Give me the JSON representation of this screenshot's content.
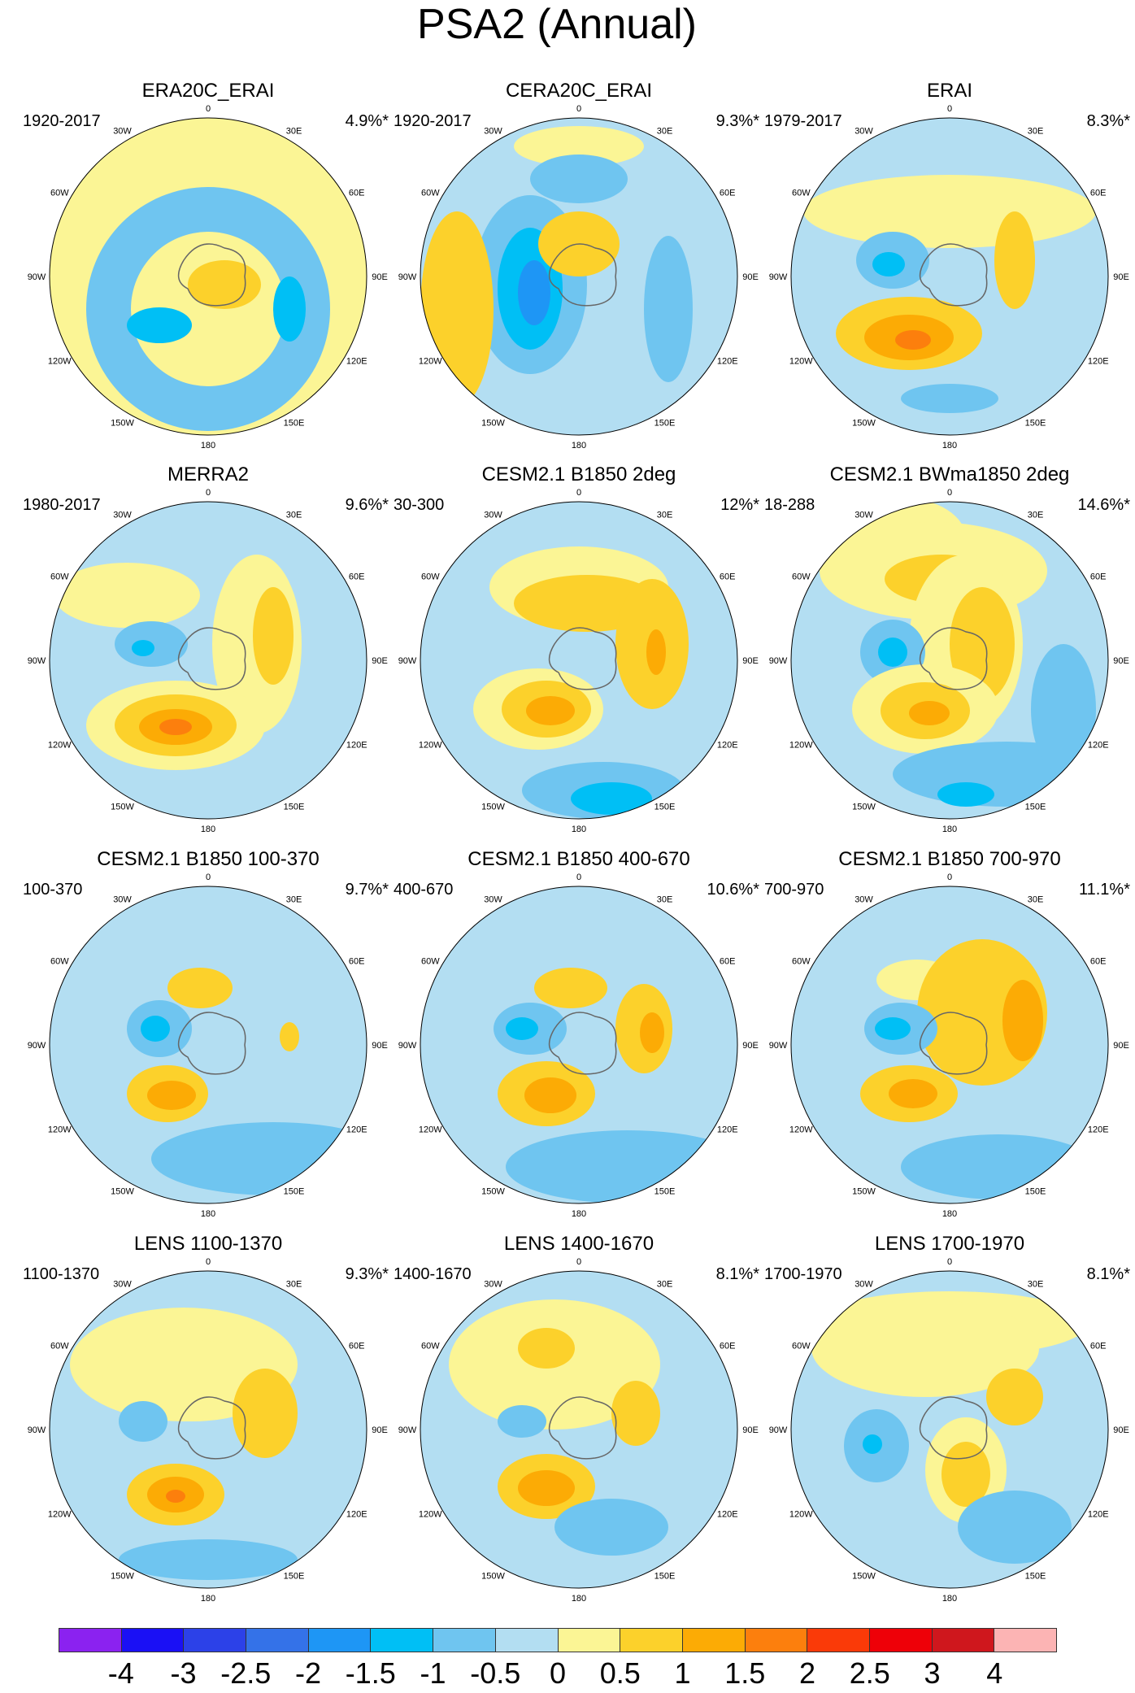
{
  "figure": {
    "title": "PSA2 (Annual)",
    "lon_labels": [
      "0",
      "30E",
      "60E",
      "90E",
      "120E",
      "150E",
      "180",
      "150W",
      "120W",
      "90W",
      "60W",
      "30W"
    ]
  },
  "panels": [
    {
      "title": "ERA20C_ERAI",
      "range": "1920-2017",
      "pct": "4.9%*"
    },
    {
      "title": "CERA20C_ERAI",
      "range": "1920-2017",
      "pct": "9.3%*"
    },
    {
      "title": "ERAI",
      "range": "1979-2017",
      "pct": "8.3%*"
    },
    {
      "title": "MERRA2",
      "range": "1980-2017",
      "pct": "9.6%*"
    },
    {
      "title": "CESM2.1 B1850 2deg",
      "range": "30-300",
      "pct": "12%*"
    },
    {
      "title": "CESM2.1 BWma1850 2deg",
      "range": "18-288",
      "pct": "14.6%*"
    },
    {
      "title": "CESM2.1 B1850 100-370",
      "range": "100-370",
      "pct": "9.7%*"
    },
    {
      "title": "CESM2.1 B1850 400-670",
      "range": "400-670",
      "pct": "10.6%*"
    },
    {
      "title": "CESM2.1 B1850 700-970",
      "range": "700-970",
      "pct": "11.1%*"
    },
    {
      "title": "LENS 1100-1370",
      "range": "1100-1370",
      "pct": "9.3%*"
    },
    {
      "title": "LENS 1400-1670",
      "range": "1400-1670",
      "pct": "8.1%*"
    },
    {
      "title": "LENS 1700-1970",
      "range": "1700-1970",
      "pct": "8.1%*"
    }
  ],
  "colorbar": {
    "colors": [
      "#8b22f0",
      "#1a10f5",
      "#2c41e8",
      "#3472e8",
      "#1e96f5",
      "#00bff5",
      "#6fc5f0",
      "#b3def2",
      "#fbf595",
      "#fcd12b",
      "#fcab05",
      "#fc7f0d",
      "#fa3a08",
      "#ee0008",
      "#cf171d",
      "#fcb4b4"
    ],
    "labels": [
      "-4",
      "-3",
      "-2.5",
      "-2",
      "-1.5",
      "-1",
      "-0.5",
      "0",
      "0.5",
      "1",
      "1.5",
      "2",
      "2.5",
      "3",
      "4"
    ]
  }
}
